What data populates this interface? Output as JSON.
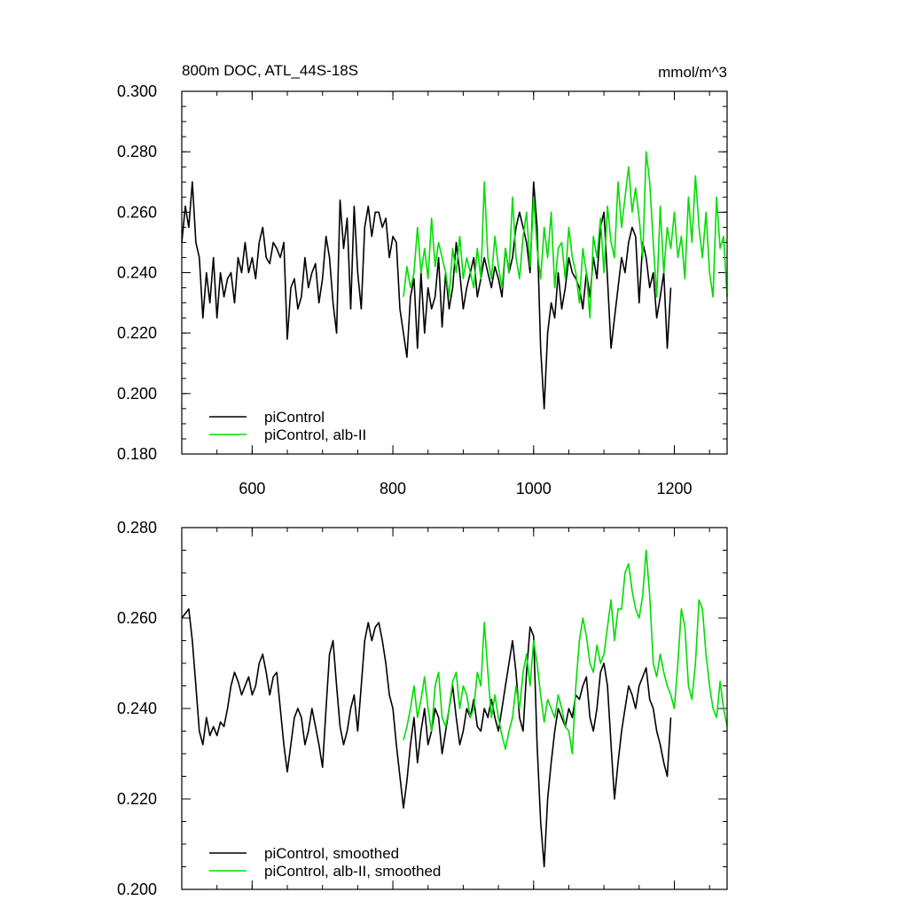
{
  "chart_data": [
    {
      "type": "line",
      "title": "800m DOC, ATL_44S-18S",
      "units": "mmol/m^3",
      "xlim": [
        500,
        1275
      ],
      "ylim": [
        0.18,
        0.3
      ],
      "x_ticks": [
        600,
        800,
        1000,
        1200
      ],
      "x_tick_labels": [
        "600",
        "800",
        "1000",
        "1200"
      ],
      "y_ticks": [
        0.18,
        0.2,
        0.22,
        0.24,
        0.26,
        0.28,
        0.3
      ],
      "y_tick_labels": [
        "0.180",
        "0.200",
        "0.220",
        "0.240",
        "0.260",
        "0.280",
        "0.300"
      ],
      "grid": false,
      "legend_position": "bottom-left",
      "series": [
        {
          "name": "piControl",
          "color": "#000000",
          "x": [
            500,
            505,
            510,
            515,
            520,
            525,
            530,
            535,
            540,
            545,
            550,
            555,
            560,
            565,
            570,
            575,
            580,
            585,
            590,
            595,
            600,
            605,
            610,
            615,
            620,
            625,
            630,
            635,
            640,
            645,
            650,
            655,
            660,
            665,
            670,
            675,
            680,
            685,
            690,
            695,
            700,
            705,
            710,
            715,
            720,
            725,
            730,
            735,
            740,
            745,
            750,
            755,
            760,
            765,
            770,
            775,
            780,
            785,
            790,
            795,
            800,
            805,
            810,
            815,
            820,
            825,
            830,
            835,
            840,
            845,
            850,
            855,
            860,
            865,
            870,
            875,
            880,
            885,
            890,
            895,
            900,
            905,
            910,
            915,
            920,
            925,
            930,
            935,
            940,
            945,
            950,
            955,
            960,
            965,
            970,
            975,
            980,
            985,
            990,
            995,
            1000,
            1005,
            1010,
            1015,
            1020,
            1025,
            1030,
            1035,
            1040,
            1045,
            1050,
            1055,
            1060,
            1065,
            1070,
            1075,
            1080,
            1085,
            1090,
            1095,
            1100,
            1105,
            1110,
            1115,
            1120,
            1125,
            1130,
            1135,
            1140,
            1145,
            1150,
            1155,
            1160,
            1165,
            1170,
            1175,
            1180,
            1185,
            1190,
            1195
          ],
          "values": [
            0.25,
            0.262,
            0.255,
            0.27,
            0.25,
            0.245,
            0.225,
            0.24,
            0.23,
            0.245,
            0.225,
            0.24,
            0.232,
            0.238,
            0.24,
            0.23,
            0.245,
            0.24,
            0.25,
            0.24,
            0.245,
            0.238,
            0.25,
            0.255,
            0.245,
            0.243,
            0.25,
            0.248,
            0.245,
            0.25,
            0.218,
            0.235,
            0.238,
            0.228,
            0.232,
            0.245,
            0.235,
            0.24,
            0.243,
            0.23,
            0.238,
            0.252,
            0.245,
            0.23,
            0.22,
            0.264,
            0.248,
            0.258,
            0.228,
            0.262,
            0.24,
            0.228,
            0.255,
            0.262,
            0.252,
            0.26,
            0.26,
            0.255,
            0.258,
            0.245,
            0.252,
            0.25,
            0.228,
            0.22,
            0.212,
            0.232,
            0.238,
            0.215,
            0.24,
            0.22,
            0.235,
            0.228,
            0.232,
            0.245,
            0.222,
            0.24,
            0.228,
            0.235,
            0.25,
            0.24,
            0.228,
            0.235,
            0.24,
            0.245,
            0.232,
            0.238,
            0.245,
            0.24,
            0.235,
            0.242,
            0.238,
            0.232,
            0.248,
            0.24,
            0.245,
            0.255,
            0.26,
            0.255,
            0.25,
            0.24,
            0.27,
            0.255,
            0.215,
            0.195,
            0.22,
            0.23,
            0.225,
            0.24,
            0.228,
            0.235,
            0.245,
            0.24,
            0.238,
            0.235,
            0.228,
            0.24,
            0.232,
            0.245,
            0.238,
            0.255,
            0.26,
            0.238,
            0.215,
            0.225,
            0.235,
            0.245,
            0.24,
            0.25,
            0.255,
            0.252,
            0.23,
            0.25,
            0.245,
            0.235,
            0.24,
            0.225,
            0.232,
            0.24,
            0.215,
            0.235
          ]
        },
        {
          "name": "piControl, alb-II",
          "color": "#00dd00",
          "x": [
            815,
            820,
            825,
            830,
            835,
            840,
            845,
            850,
            855,
            860,
            865,
            870,
            875,
            880,
            885,
            890,
            895,
            900,
            905,
            910,
            915,
            920,
            925,
            930,
            935,
            940,
            945,
            950,
            955,
            960,
            965,
            970,
            975,
            980,
            985,
            990,
            995,
            1000,
            1005,
            1010,
            1015,
            1020,
            1025,
            1030,
            1035,
            1040,
            1045,
            1050,
            1055,
            1060,
            1065,
            1070,
            1075,
            1080,
            1085,
            1090,
            1095,
            1100,
            1105,
            1110,
            1115,
            1120,
            1125,
            1130,
            1135,
            1140,
            1145,
            1150,
            1155,
            1160,
            1165,
            1170,
            1175,
            1180,
            1185,
            1190,
            1195,
            1200,
            1205,
            1210,
            1215,
            1220,
            1225,
            1230,
            1235,
            1240,
            1245,
            1250,
            1255,
            1260,
            1265,
            1270,
            1275
          ],
          "values": [
            0.232,
            0.242,
            0.235,
            0.24,
            0.255,
            0.24,
            0.248,
            0.238,
            0.258,
            0.242,
            0.25,
            0.245,
            0.24,
            0.232,
            0.248,
            0.24,
            0.252,
            0.238,
            0.245,
            0.24,
            0.235,
            0.248,
            0.238,
            0.27,
            0.245,
            0.238,
            0.252,
            0.242,
            0.235,
            0.248,
            0.24,
            0.265,
            0.245,
            0.238,
            0.252,
            0.26,
            0.242,
            0.265,
            0.248,
            0.238,
            0.255,
            0.245,
            0.26,
            0.235,
            0.248,
            0.25,
            0.238,
            0.255,
            0.245,
            0.24,
            0.23,
            0.248,
            0.24,
            0.225,
            0.252,
            0.245,
            0.258,
            0.24,
            0.262,
            0.25,
            0.245,
            0.27,
            0.255,
            0.265,
            0.275,
            0.26,
            0.268,
            0.258,
            0.245,
            0.28,
            0.27,
            0.25,
            0.232,
            0.262,
            0.24,
            0.255,
            0.248,
            0.26,
            0.245,
            0.252,
            0.238,
            0.265,
            0.25,
            0.272,
            0.255,
            0.245,
            0.26,
            0.24,
            0.232,
            0.265,
            0.248,
            0.252,
            0.232
          ]
        }
      ]
    },
    {
      "type": "line",
      "title": "",
      "xlim": [
        500,
        1275
      ],
      "ylim": [
        0.2,
        0.28
      ],
      "x_ticks": [
        600,
        800,
        1000,
        1200
      ],
      "x_tick_labels": [],
      "y_ticks": [
        0.2,
        0.22,
        0.24,
        0.26,
        0.28
      ],
      "y_tick_labels": [
        "0.200",
        "0.220",
        "0.240",
        "0.260",
        "0.280"
      ],
      "grid": false,
      "legend_position": "bottom-left",
      "series": [
        {
          "name": "piControl, smoothed",
          "color": "#000000",
          "x": [
            500,
            505,
            510,
            515,
            520,
            525,
            530,
            535,
            540,
            545,
            550,
            555,
            560,
            565,
            570,
            575,
            580,
            585,
            590,
            595,
            600,
            605,
            610,
            615,
            620,
            625,
            630,
            635,
            640,
            645,
            650,
            655,
            660,
            665,
            670,
            675,
            680,
            685,
            690,
            695,
            700,
            705,
            710,
            715,
            720,
            725,
            730,
            735,
            740,
            745,
            750,
            755,
            760,
            765,
            770,
            775,
            780,
            785,
            790,
            795,
            800,
            805,
            810,
            815,
            820,
            825,
            830,
            835,
            840,
            845,
            850,
            855,
            860,
            865,
            870,
            875,
            880,
            885,
            890,
            895,
            900,
            905,
            910,
            915,
            920,
            925,
            930,
            935,
            940,
            945,
            950,
            955,
            960,
            965,
            970,
            975,
            980,
            985,
            990,
            995,
            1000,
            1005,
            1010,
            1015,
            1020,
            1025,
            1030,
            1035,
            1040,
            1045,
            1050,
            1055,
            1060,
            1065,
            1070,
            1075,
            1080,
            1085,
            1090,
            1095,
            1100,
            1105,
            1110,
            1115,
            1120,
            1125,
            1130,
            1135,
            1140,
            1145,
            1150,
            1155,
            1160,
            1165,
            1170,
            1175,
            1180,
            1185,
            1190,
            1195
          ],
          "values": [
            0.26,
            0.261,
            0.262,
            0.255,
            0.245,
            0.235,
            0.232,
            0.238,
            0.234,
            0.236,
            0.234,
            0.237,
            0.236,
            0.24,
            0.245,
            0.248,
            0.246,
            0.243,
            0.245,
            0.247,
            0.243,
            0.245,
            0.25,
            0.252,
            0.248,
            0.243,
            0.247,
            0.248,
            0.24,
            0.232,
            0.226,
            0.232,
            0.238,
            0.24,
            0.238,
            0.232,
            0.235,
            0.24,
            0.236,
            0.232,
            0.227,
            0.24,
            0.252,
            0.255,
            0.245,
            0.236,
            0.232,
            0.235,
            0.24,
            0.243,
            0.235,
            0.245,
            0.255,
            0.259,
            0.255,
            0.258,
            0.259,
            0.255,
            0.25,
            0.243,
            0.24,
            0.232,
            0.225,
            0.218,
            0.224,
            0.232,
            0.238,
            0.228,
            0.235,
            0.24,
            0.232,
            0.235,
            0.24,
            0.238,
            0.23,
            0.235,
            0.24,
            0.245,
            0.238,
            0.232,
            0.235,
            0.24,
            0.238,
            0.242,
            0.236,
            0.235,
            0.24,
            0.238,
            0.242,
            0.238,
            0.235,
            0.24,
            0.245,
            0.25,
            0.255,
            0.248,
            0.238,
            0.235,
            0.248,
            0.258,
            0.256,
            0.232,
            0.215,
            0.205,
            0.22,
            0.228,
            0.235,
            0.24,
            0.238,
            0.236,
            0.24,
            0.238,
            0.243,
            0.242,
            0.245,
            0.247,
            0.238,
            0.235,
            0.24,
            0.248,
            0.25,
            0.245,
            0.232,
            0.22,
            0.228,
            0.235,
            0.24,
            0.245,
            0.243,
            0.24,
            0.245,
            0.247,
            0.249,
            0.242,
            0.24,
            0.235,
            0.232,
            0.228,
            0.225,
            0.238
          ]
        },
        {
          "name": "piControl, alb-II, smoothed",
          "color": "#00dd00",
          "x": [
            815,
            820,
            825,
            830,
            835,
            840,
            845,
            850,
            855,
            860,
            865,
            870,
            875,
            880,
            885,
            890,
            895,
            900,
            905,
            910,
            915,
            920,
            925,
            930,
            935,
            940,
            945,
            950,
            955,
            960,
            965,
            970,
            975,
            980,
            985,
            990,
            995,
            1000,
            1005,
            1010,
            1015,
            1020,
            1025,
            1030,
            1035,
            1040,
            1045,
            1050,
            1055,
            1060,
            1065,
            1070,
            1075,
            1080,
            1085,
            1090,
            1095,
            1100,
            1105,
            1110,
            1115,
            1120,
            1125,
            1130,
            1135,
            1140,
            1145,
            1150,
            1155,
            1160,
            1165,
            1170,
            1175,
            1180,
            1185,
            1190,
            1195,
            1200,
            1205,
            1210,
            1215,
            1220,
            1225,
            1230,
            1235,
            1240,
            1245,
            1250,
            1255,
            1260,
            1265,
            1270,
            1275
          ],
          "values": [
            0.233,
            0.236,
            0.24,
            0.245,
            0.238,
            0.242,
            0.247,
            0.24,
            0.235,
            0.245,
            0.248,
            0.238,
            0.236,
            0.24,
            0.246,
            0.248,
            0.24,
            0.245,
            0.243,
            0.238,
            0.24,
            0.248,
            0.245,
            0.259,
            0.248,
            0.238,
            0.243,
            0.238,
            0.234,
            0.231,
            0.235,
            0.238,
            0.245,
            0.24,
            0.248,
            0.252,
            0.245,
            0.255,
            0.25,
            0.243,
            0.237,
            0.242,
            0.24,
            0.238,
            0.243,
            0.24,
            0.236,
            0.235,
            0.23,
            0.245,
            0.255,
            0.26,
            0.256,
            0.25,
            0.248,
            0.254,
            0.25,
            0.252,
            0.258,
            0.264,
            0.255,
            0.262,
            0.262,
            0.27,
            0.272,
            0.266,
            0.262,
            0.26,
            0.265,
            0.275,
            0.265,
            0.25,
            0.247,
            0.252,
            0.248,
            0.245,
            0.243,
            0.24,
            0.25,
            0.262,
            0.258,
            0.245,
            0.242,
            0.25,
            0.264,
            0.262,
            0.252,
            0.245,
            0.24,
            0.238,
            0.246,
            0.24,
            0.236
          ]
        }
      ]
    }
  ]
}
